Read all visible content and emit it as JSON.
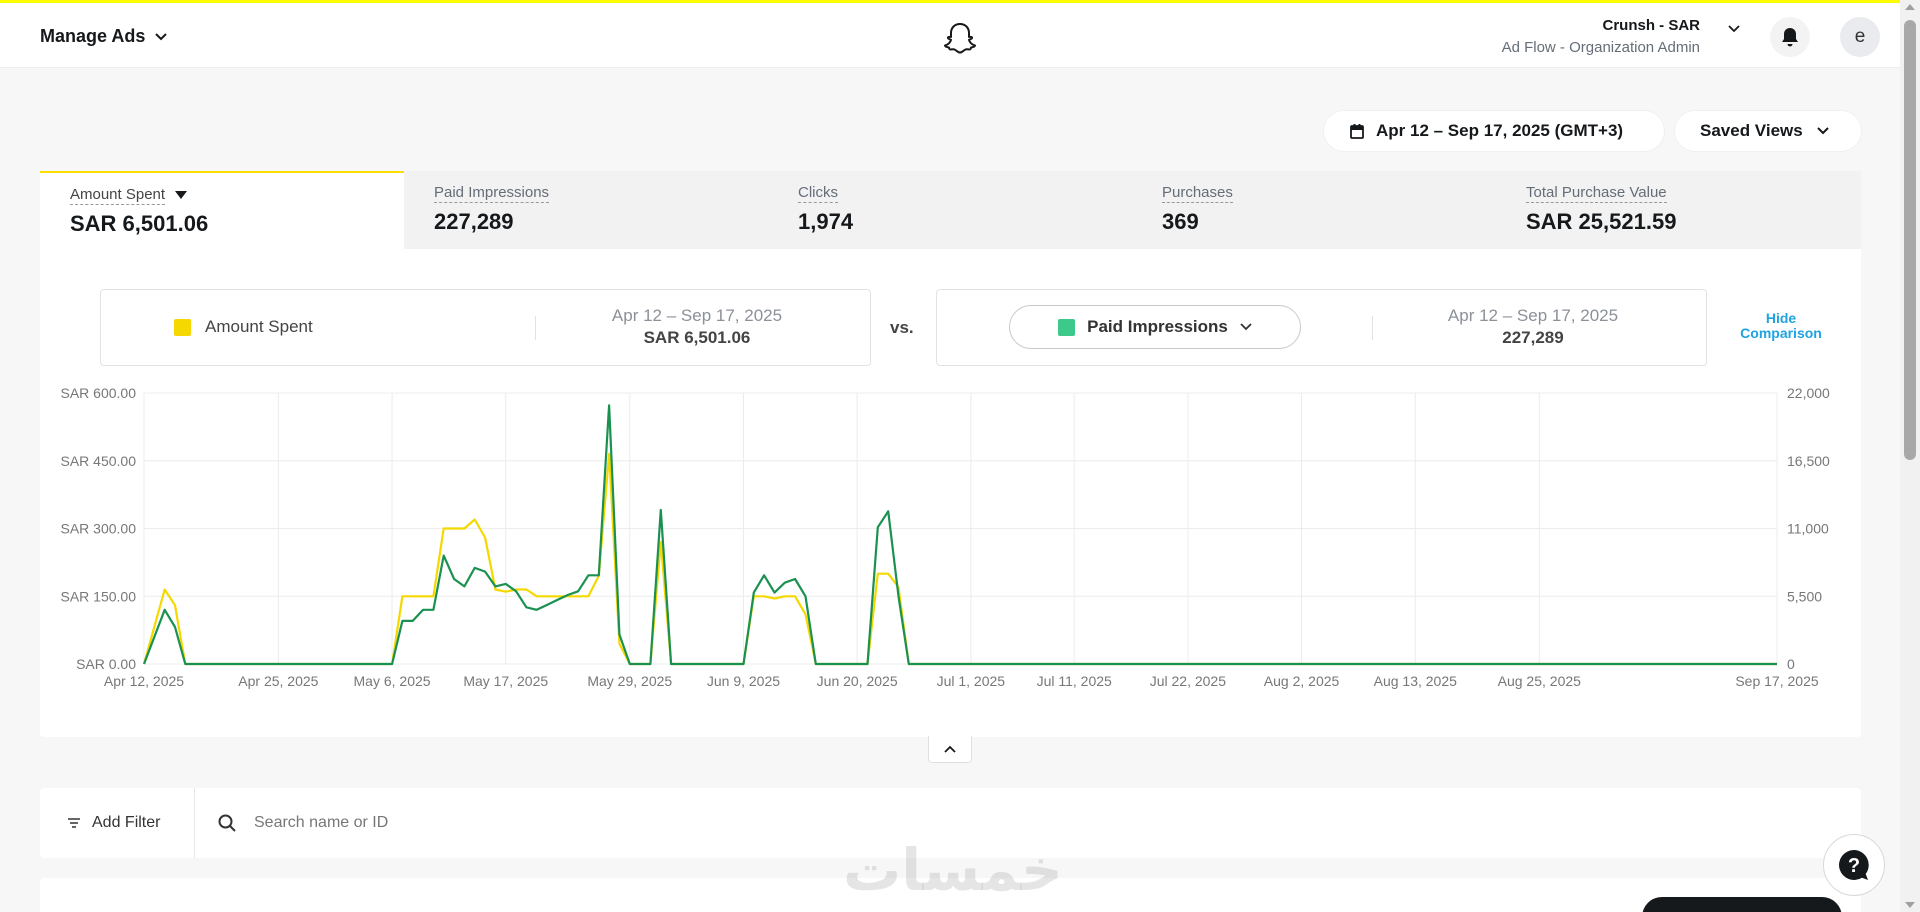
{
  "header": {
    "menu_title": "Manage Ads",
    "account_name": "Crunsh - SAR",
    "account_role": "Ad Flow - Organization Admin",
    "avatar_letter": "e"
  },
  "toolbar": {
    "date_range": "Apr 12 – Sep 17, 2025 (GMT+3)",
    "saved_views": "Saved Views"
  },
  "metrics": [
    {
      "label": "Amount Spent",
      "value": "SAR 6,501.06"
    },
    {
      "label": "Paid Impressions",
      "value": "227,289"
    },
    {
      "label": "Clicks",
      "value": "1,974"
    },
    {
      "label": "Purchases",
      "value": "369"
    },
    {
      "label": "Total Purchase Value",
      "value": "SAR 25,521.59"
    }
  ],
  "comparison": {
    "left_series": "Amount Spent",
    "left_range": "Apr 12 – Sep 17, 2025",
    "left_value": "SAR 6,501.06",
    "vs": "vs.",
    "right_series": "Paid Impressions",
    "right_range": "Apr 12 – Sep 17, 2025",
    "right_value": "227,289",
    "hide_label": "Hide Comparison"
  },
  "colors": {
    "amount_spent": "#f5d800",
    "paid_impressions": "#1a9150",
    "paid_impressions_swatch": "#3cc98a",
    "accent": "#fffc00",
    "link": "#1fa4e0"
  },
  "chart_data": {
    "type": "line",
    "x_labels": [
      "Apr 12, 2025",
      "Apr 25, 2025",
      "May 6, 2025",
      "May 17, 2025",
      "May 29, 2025",
      "Jun 9, 2025",
      "Jun 20, 2025",
      "Jul 1, 2025",
      "Jul 11, 2025",
      "Jul 22, 2025",
      "Aug 2, 2025",
      "Aug 13, 2025",
      "Aug 25, 2025",
      "Sep 17, 2025"
    ],
    "x_label_days": [
      0,
      13,
      24,
      35,
      47,
      58,
      69,
      80,
      90,
      101,
      112,
      123,
      135,
      158
    ],
    "left_axis": {
      "ticks": [
        "SAR 0.00",
        "SAR 150.00",
        "SAR 300.00",
        "SAR 450.00",
        "SAR 600.00"
      ],
      "range": [
        0,
        600
      ]
    },
    "right_axis": {
      "ticks": [
        "0",
        "5,500",
        "11,000",
        "16,500",
        "22,000"
      ],
      "range": [
        0,
        22000
      ]
    },
    "grid": true,
    "series": [
      {
        "name": "Amount Spent",
        "axis": "left",
        "points": [
          [
            0,
            0
          ],
          [
            2,
            165
          ],
          [
            3,
            130
          ],
          [
            4,
            0
          ],
          [
            24,
            0
          ],
          [
            25,
            150
          ],
          [
            26,
            150
          ],
          [
            27,
            150
          ],
          [
            28,
            150
          ],
          [
            29,
            300
          ],
          [
            30,
            300
          ],
          [
            31,
            300
          ],
          [
            32,
            320
          ],
          [
            33,
            280
          ],
          [
            34,
            165
          ],
          [
            35,
            160
          ],
          [
            36,
            165
          ],
          [
            37,
            165
          ],
          [
            38,
            150
          ],
          [
            39,
            150
          ],
          [
            40,
            150
          ],
          [
            41,
            150
          ],
          [
            42,
            150
          ],
          [
            43,
            150
          ],
          [
            44,
            195
          ],
          [
            45,
            465
          ],
          [
            46,
            45
          ],
          [
            47,
            0
          ],
          [
            49,
            0
          ],
          [
            50,
            270
          ],
          [
            51,
            0
          ],
          [
            58,
            0
          ],
          [
            59,
            150
          ],
          [
            60,
            150
          ],
          [
            61,
            145
          ],
          [
            62,
            150
          ],
          [
            63,
            150
          ],
          [
            64,
            110
          ],
          [
            65,
            0
          ],
          [
            70,
            0
          ],
          [
            71,
            200
          ],
          [
            72,
            200
          ],
          [
            73,
            170
          ],
          [
            74,
            0
          ],
          [
            158,
            0
          ]
        ]
      },
      {
        "name": "Paid Impressions",
        "axis": "right",
        "points": [
          [
            0,
            0
          ],
          [
            2,
            4400
          ],
          [
            3,
            3000
          ],
          [
            4,
            0
          ],
          [
            24,
            0
          ],
          [
            25,
            3500
          ],
          [
            26,
            3500
          ],
          [
            27,
            4400
          ],
          [
            28,
            4400
          ],
          [
            29,
            8800
          ],
          [
            30,
            6900
          ],
          [
            31,
            6300
          ],
          [
            32,
            7800
          ],
          [
            33,
            7500
          ],
          [
            34,
            6300
          ],
          [
            35,
            6500
          ],
          [
            36,
            5900
          ],
          [
            37,
            4600
          ],
          [
            38,
            4400
          ],
          [
            39,
            4800
          ],
          [
            40,
            5200
          ],
          [
            41,
            5600
          ],
          [
            42,
            5900
          ],
          [
            43,
            7200
          ],
          [
            44,
            7200
          ],
          [
            45,
            21000
          ],
          [
            46,
            2400
          ],
          [
            47,
            0
          ],
          [
            49,
            0
          ],
          [
            50,
            12500
          ],
          [
            51,
            0
          ],
          [
            58,
            0
          ],
          [
            59,
            5800
          ],
          [
            60,
            7200
          ],
          [
            61,
            5800
          ],
          [
            62,
            6600
          ],
          [
            63,
            6900
          ],
          [
            64,
            5500
          ],
          [
            65,
            0
          ],
          [
            70,
            0
          ],
          [
            71,
            11100
          ],
          [
            72,
            12400
          ],
          [
            73,
            5500
          ],
          [
            74,
            0
          ],
          [
            158,
            0
          ]
        ]
      }
    ]
  },
  "filter": {
    "add_filter": "Add Filter",
    "search_placeholder": "Search name or ID"
  },
  "watermark": "خمسات"
}
